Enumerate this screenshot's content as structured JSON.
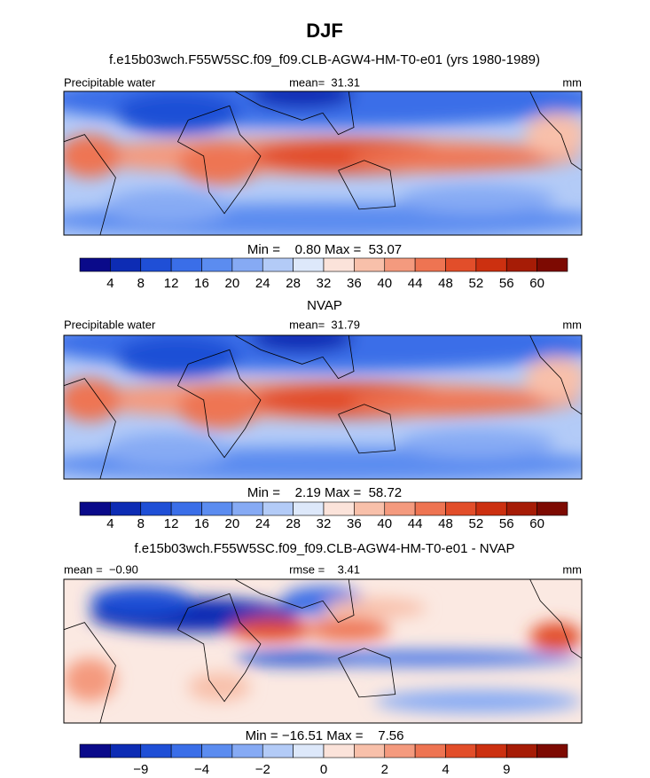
{
  "title": "DJF",
  "panels": [
    {
      "title": "f.e15b03wch.F55W5SC.f09_f09.CLB-AGW4-HM-T0-e01 (yrs 1980-1989)",
      "left_label": "Precipitable water",
      "center_label": "mean=  31.31",
      "right_label": "mm",
      "stats": "Min =    0.80 Max =  53.07",
      "colorbar": {
        "colors": [
          "#0a0a8a",
          "#0d2cb4",
          "#1f4fd6",
          "#3a6ee8",
          "#5b8cf0",
          "#86aaf4",
          "#b3cbf7",
          "#dde8fa",
          "#fbe3da",
          "#f8c0aa",
          "#f49a7e",
          "#ee7452",
          "#e24e2a",
          "#cc3010",
          "#a61c06",
          "#7d0a02"
        ],
        "ticks": [
          "4",
          "8",
          "12",
          "16",
          "20",
          "24",
          "28",
          "32",
          "36",
          "40",
          "44",
          "48",
          "52",
          "56",
          "60"
        ]
      }
    },
    {
      "title": "NVAP",
      "left_label": "Precipitable water",
      "center_label": "mean=  31.79",
      "right_label": "mm",
      "stats": "Min =    2.19 Max =  58.72",
      "colorbar": {
        "colors": [
          "#0a0a8a",
          "#0d2cb4",
          "#1f4fd6",
          "#3a6ee8",
          "#5b8cf0",
          "#86aaf4",
          "#b3cbf7",
          "#dde8fa",
          "#fbe3da",
          "#f8c0aa",
          "#f49a7e",
          "#ee7452",
          "#e24e2a",
          "#cc3010",
          "#a61c06",
          "#7d0a02"
        ],
        "ticks": [
          "4",
          "8",
          "12",
          "16",
          "20",
          "24",
          "28",
          "32",
          "36",
          "40",
          "44",
          "48",
          "52",
          "56",
          "60"
        ]
      }
    },
    {
      "title": "f.e15b03wch.F55W5SC.f09_f09.CLB-AGW4-HM-T0-e01 - NVAP",
      "left_label": "mean =  −0.90",
      "center_label": "rmse =    3.41",
      "right_label": "mm",
      "stats": "Min = −16.51 Max =    7.56",
      "colorbar": {
        "colors": [
          "#0a0a8a",
          "#0d2cb4",
          "#1f4fd6",
          "#3a6ee8",
          "#5b8cf0",
          "#86aaf4",
          "#b3cbf7",
          "#dde8fa",
          "#fbe3da",
          "#f8c0aa",
          "#f49a7e",
          "#ee7452",
          "#e24e2a",
          "#cc3010",
          "#a61c06",
          "#7d0a02"
        ],
        "ticks": [
          null,
          "−9",
          null,
          "−4",
          null,
          "−2",
          null,
          "0",
          null,
          "2",
          null,
          "4",
          null,
          "9",
          null
        ]
      }
    }
  ]
}
